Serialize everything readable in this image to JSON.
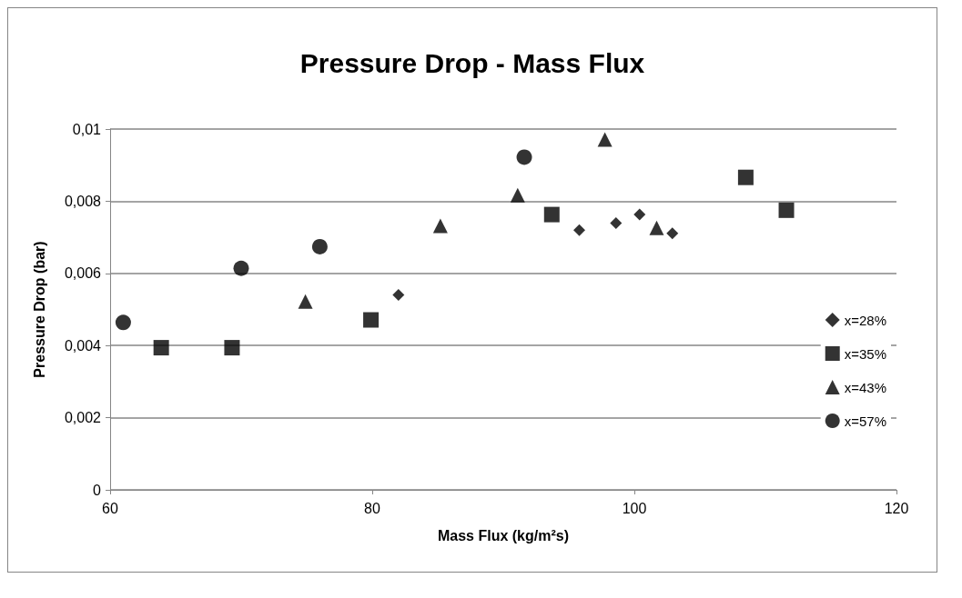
{
  "chart_data": {
    "type": "scatter",
    "title": "Pressure Drop - Mass Flux",
    "xlabel": "Mass Flux (kg/m²s)",
    "ylabel": "Pressure Drop (bar)",
    "xlim": [
      60,
      120
    ],
    "xticks": [
      60,
      80,
      100,
      120
    ],
    "ylim": [
      0,
      0.01
    ],
    "yticks": [
      0,
      {
        "value": 0.002,
        "label": "0,002"
      },
      {
        "value": 0.004,
        "label": "0,004"
      },
      {
        "value": 0.006,
        "label": "0,006"
      },
      {
        "value": 0.008,
        "label": "0,008"
      },
      {
        "value": 0.01,
        "label": "0,01"
      }
    ],
    "grid": "y",
    "legend": "right",
    "series": [
      {
        "name": "x=28%",
        "color": "#000000",
        "marker": "diamond",
        "x": [
          82.0,
          95.8,
          98.6,
          100.4,
          102.9
        ],
        "values": [
          0.0054,
          0.0072,
          0.00739,
          0.00763,
          0.00711
        ]
      },
      {
        "name": "x=35%",
        "color": "#000000",
        "marker": "square",
        "x": [
          63.9,
          69.3,
          79.9,
          93.7,
          108.5,
          111.6
        ],
        "values": [
          0.00394,
          0.00394,
          0.00471,
          0.00763,
          0.00866,
          0.00775
        ]
      },
      {
        "name": "x=43%",
        "color": "#000000",
        "marker": "triangle",
        "x": [
          74.9,
          85.2,
          91.1,
          97.75,
          101.7
        ],
        "values": [
          0.00522,
          0.00732,
          0.00817,
          0.00971,
          0.00726
        ]
      },
      {
        "name": "x=57%",
        "color": "#000000",
        "marker": "circle",
        "x": [
          61.0,
          70.0,
          76.0,
          91.6
        ],
        "values": [
          0.00464,
          0.00614,
          0.00674,
          0.00922
        ]
      }
    ]
  }
}
